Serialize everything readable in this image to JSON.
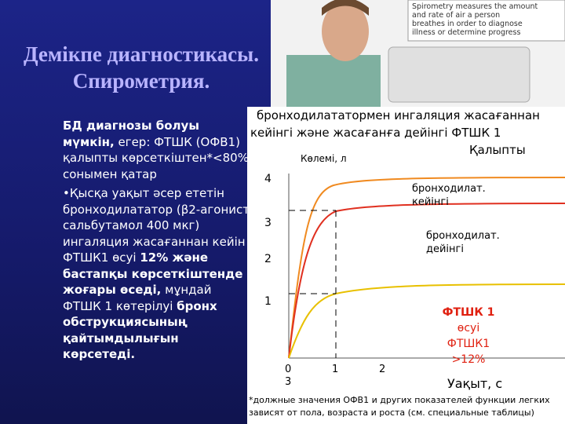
{
  "photo_caption": [
    "Spirometry measures the amount",
    "and rate of air a person",
    "breathes in order to diagnose",
    "illness or determine progress"
  ],
  "title": [
    "Демікпе диагностикасы.",
    "Спирометрия."
  ],
  "left_text": [
    [
      {
        "text": "БД диагнозы болуы мүмкін,",
        "bold": true
      },
      {
        "text": " егер: ФТШК (ОФВ1) қалыпты көрсеткіштен*<80% сонымен қатар",
        "bold": false
      }
    ],
    [
      {
        "text": "•Қысқа уақыт әсер ететін бронходилататор (β2-агонист сальбутамол 400 мкг) ингаляция жасағаннан кейін ФТШК1 өсуі ",
        "bold": false
      },
      {
        "text": "12% және бастапқы көрсеткіштенде жоғары өседі,",
        "bold": true
      },
      {
        "text": " мұндай ФТШК 1 көтерілуі ",
        "bold": false
      },
      {
        "text": "бронх обструкциясының қайтымдылығын көрсетеді.",
        "bold": true
      }
    ]
  ],
  "chart": {
    "heading": [
      "бронходилататормен ингаляция жасағаннан",
      "кейінгі және жасағанға дейінгі ФТШК 1"
    ],
    "normal_label": "Қалыпты",
    "y_label": "Көлемі, л",
    "yticks": [
      "4",
      "3",
      "2",
      "1"
    ],
    "xticks": [
      "0",
      "1",
      "2"
    ],
    "x_extra": "3",
    "after_label": [
      "бронходилат.",
      "кейінгі"
    ],
    "before_label": [
      "бронходилат.",
      "дейінгі"
    ],
    "increase_label": [
      "ФТШК 1",
      "өсуі",
      "ФТШК1",
      ">12%"
    ],
    "x_label": "Уақыт, с",
    "footnote": [
      "*должные значения ОФВ1 и других показателей функции легких",
      "зависят от пола, возраста и роста (см. специальные таблицы)"
    ]
  }
}
